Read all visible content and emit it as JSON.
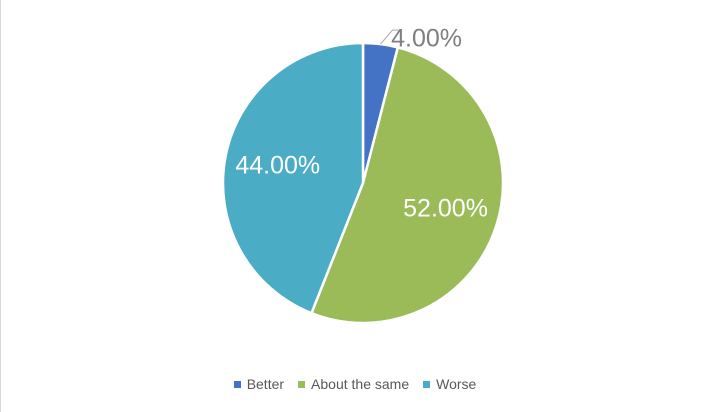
{
  "chart_data": {
    "type": "pie",
    "categories": [
      "Better",
      "About the same",
      "Worse"
    ],
    "values": [
      4.0,
      52.0,
      44.0
    ],
    "data_labels": [
      "4.00%",
      "52.00%",
      "44.00%"
    ],
    "colors": [
      "#4472c4",
      "#9bbb59",
      "#4bacc6"
    ],
    "title": "",
    "legend_position": "bottom"
  }
}
